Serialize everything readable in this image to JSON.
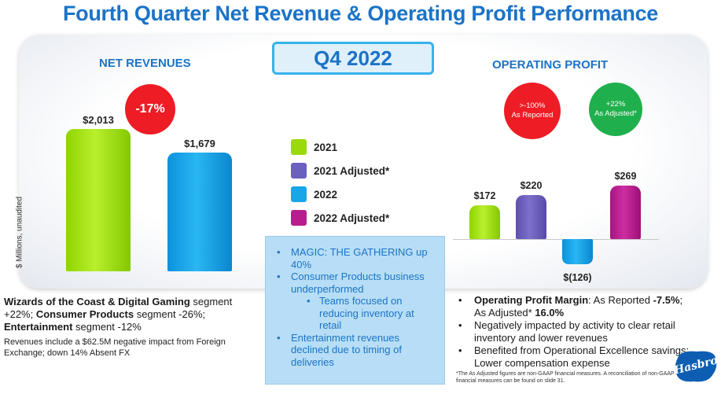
{
  "title": "Fourth Quarter Net Revenue & Operating Profit Performance",
  "badge": "Q4 2022",
  "y_axis_label": "$ Millions, unaudited",
  "colors": {
    "2021": "#9ad90b",
    "2021 Adjusted*": "#6b5fbf",
    "2022": "#17a6e8",
    "2022 Adjusted*": "#b81d8f",
    "accent": "#1b73c7",
    "negative_badge": "#ee1c25",
    "positive_badge": "#1fb04d"
  },
  "chart_data": [
    {
      "type": "bar",
      "title": "NET REVENUES",
      "categories": [
        "2021",
        "2022"
      ],
      "values": [
        2013,
        1679
      ],
      "labels": [
        "$2,013",
        "$1,679"
      ],
      "badges": [
        {
          "text": "-17%"
        }
      ],
      "ylim": [
        0,
        2013
      ]
    },
    {
      "type": "bar",
      "title": "OPERATING PROFIT",
      "categories": [
        "2021",
        "2021 Adjusted*",
        "2022",
        "2022 Adjusted*"
      ],
      "values": [
        172,
        220,
        -126,
        269
      ],
      "labels": [
        "$172",
        "$220",
        "$(126)",
        "$269"
      ],
      "badges": [
        {
          "line1": ">-100%",
          "line2": "As Reported"
        },
        {
          "line1": "+22%",
          "line2": "As Adjusted*"
        }
      ],
      "ylim": [
        -126,
        269
      ]
    }
  ],
  "legend": [
    "2021",
    "2021 Adjusted*",
    "2022",
    "2022 Adjusted*"
  ],
  "callout": {
    "items": [
      "MAGIC: THE GATHERING up 40%",
      "Consumer Products business underperformed",
      "Teams focused on reducing inventory at retail",
      "Entertainment revenues declined due to timing of deliveries"
    ]
  },
  "left_notes": {
    "seg1_bold": "Wizards of the Coast & Digital Gaming",
    "seg1_rest": " segment +22%; ",
    "seg2_bold": "Consumer Products",
    "seg2_rest": " segment -26%; ",
    "seg3_bold": "Entertainment",
    "seg3_rest": " segment -12%",
    "small": "Revenues include a $62.5M negative impact from Foreign Exchange; down 14% Absent FX"
  },
  "right_notes": {
    "margin_bold": "Operating Profit Margin",
    "margin_mid": ": As Reported ",
    "margin_reported": "-7.5%",
    "margin_sep": "; As Adjusted* ",
    "margin_adjusted": "16.0%",
    "item2": "Negatively impacted by activity to clear retail inventory and lower revenues",
    "item3": "Benefited from Operational Excellence savings; Lower compensation expense",
    "footnote": "*The As Adjusted figures are non-GAAP financial measures. A reconciliation of non-GAAP financial measures can be found on slide 31."
  },
  "logo": {
    "text": "Hasbro"
  }
}
